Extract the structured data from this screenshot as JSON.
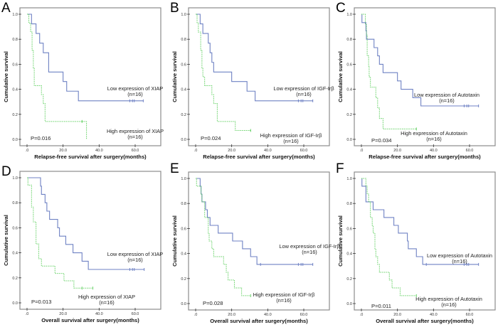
{
  "figure": {
    "description": "Six Kaplan-Meier survival curves comparing low vs high expression of XIAP, IGF-Irβ and Autotaxin"
  },
  "chart_data": [
    {
      "id": "A",
      "type": "line",
      "panel_label": "A",
      "xlabel": "Relapse-free survival after surgery(months)",
      "ylabel": "Cumulative survival",
      "xlim": [
        0,
        70
      ],
      "ylim": [
        0,
        1.0
      ],
      "xticks": [
        ".0",
        "20.0",
        "40.0",
        "60.0"
      ],
      "xtick_values": [
        0,
        20,
        40,
        60
      ],
      "yticks": [
        "0.0",
        "0.2",
        "0.4",
        "0.6",
        "0.8",
        "1.0"
      ],
      "ytick_values": [
        0,
        0.2,
        0.4,
        0.6,
        0.8,
        1.0
      ],
      "p_value": "P=0.016",
      "series": [
        {
          "name": "Low expression of XIAP",
          "n_label": "(n=16)",
          "style": "low",
          "steps": [
            [
              0,
              1.0
            ],
            [
              2.5,
              0.923
            ],
            [
              5,
              0.846
            ],
            [
              7,
              0.769
            ],
            [
              9,
              0.692
            ],
            [
              12,
              0.538
            ],
            [
              20,
              0.462
            ],
            [
              22,
              0.385
            ],
            [
              28.5,
              0.308
            ],
            [
              64.5,
              0.308
            ]
          ],
          "censored": [
            [
              57,
              0.308
            ],
            [
              58.5,
              0.308
            ],
            [
              59.5,
              0.308
            ],
            [
              64.5,
              0.308
            ]
          ]
        },
        {
          "name": "High expression of XIAP",
          "n_label": "(n=16)",
          "style": "high",
          "steps": [
            [
              0,
              1.0
            ],
            [
              1,
              0.929
            ],
            [
              2,
              0.857
            ],
            [
              2.8,
              0.714
            ],
            [
              3.5,
              0.571
            ],
            [
              4,
              0.429
            ],
            [
              8,
              0.357
            ],
            [
              9,
              0.286
            ],
            [
              10,
              0.143
            ],
            [
              33,
              0.0
            ]
          ],
          "censored": [
            [
              30.5,
              0.143
            ]
          ]
        }
      ]
    },
    {
      "id": "B",
      "type": "line",
      "panel_label": "B",
      "xlabel": "Relapse-free survival after surgery(months)",
      "ylabel": "Cumulative survival",
      "xlim": [
        0,
        70
      ],
      "ylim": [
        0,
        1.0
      ],
      "xticks": [
        ".0",
        "20.0",
        "40.0",
        "60.0"
      ],
      "xtick_values": [
        0,
        20,
        40,
        60
      ],
      "yticks": [
        "0.0",
        "0.2",
        "0.4",
        "0.6",
        "0.8",
        "1.0"
      ],
      "ytick_values": [
        0,
        0.2,
        0.4,
        0.6,
        0.8,
        1.0
      ],
      "p_value": "P=0.024",
      "series": [
        {
          "name": "Low expression of  IGF-Irβ",
          "n_label": "(n=16)",
          "style": "low",
          "steps": [
            [
              0,
              1.0
            ],
            [
              2.5,
              0.923
            ],
            [
              4,
              0.846
            ],
            [
              7,
              0.769
            ],
            [
              8,
              0.692
            ],
            [
              9,
              0.615
            ],
            [
              10,
              0.538
            ],
            [
              20,
              0.462
            ],
            [
              28.5,
              0.385
            ],
            [
              33,
              0.308
            ],
            [
              65,
              0.308
            ]
          ],
          "censored": [
            [
              57,
              0.308
            ],
            [
              58.5,
              0.308
            ],
            [
              59.5,
              0.308
            ],
            [
              65,
              0.308
            ]
          ]
        },
        {
          "name": "High expression of IGF-Irβ",
          "n_label": "(n=16)",
          "style": "high",
          "steps": [
            [
              0,
              1.0
            ],
            [
              0.8,
              0.929
            ],
            [
              1.5,
              0.857
            ],
            [
              2.8,
              0.714
            ],
            [
              3.5,
              0.571
            ],
            [
              4,
              0.5
            ],
            [
              5,
              0.429
            ],
            [
              9,
              0.357
            ],
            [
              10,
              0.286
            ],
            [
              12,
              0.143
            ],
            [
              22,
              0.071
            ],
            [
              30.5,
              0.071
            ]
          ],
          "censored": [
            [
              30.5,
              0.071
            ]
          ]
        }
      ]
    },
    {
      "id": "C",
      "type": "line",
      "panel_label": "C",
      "xlabel": "Relapse-free survival after surgery(months)",
      "ylabel": "Cumulative survival",
      "xlim": [
        0,
        70
      ],
      "ylim": [
        0,
        1.0
      ],
      "xticks": [
        ".0",
        "20.0",
        "40.0",
        "60.0"
      ],
      "xtick_values": [
        0,
        20,
        40,
        60
      ],
      "yticks": [
        "0.0",
        "0.2",
        "0.4",
        "0.6",
        "0.8",
        "1.0"
      ],
      "ytick_values": [
        0,
        0.2,
        0.4,
        0.6,
        0.8,
        1.0
      ],
      "p_value": "P=0.034",
      "series": [
        {
          "name": "Low expression of Autotaxin",
          "n_label": "(n=16)",
          "style": "low",
          "steps": [
            [
              0,
              1.0
            ],
            [
              0.3,
              0.933
            ],
            [
              2.5,
              0.867
            ],
            [
              2.8,
              0.8
            ],
            [
              7,
              0.733
            ],
            [
              9,
              0.667
            ],
            [
              10,
              0.6
            ],
            [
              12,
              0.533
            ],
            [
              20,
              0.467
            ],
            [
              22,
              0.4
            ],
            [
              28.5,
              0.333
            ],
            [
              33,
              0.267
            ],
            [
              65,
              0.267
            ]
          ],
          "censored": [
            [
              57,
              0.267
            ],
            [
              58.5,
              0.267
            ],
            [
              59.5,
              0.267
            ],
            [
              65,
              0.267
            ]
          ]
        },
        {
          "name": "High expression of Autotaxin",
          "n_label": "(n=16)",
          "style": "high",
          "steps": [
            [
              0,
              1.0
            ],
            [
              2.2,
              0.917
            ],
            [
              2.8,
              0.833
            ],
            [
              3.2,
              0.667
            ],
            [
              4,
              0.583
            ],
            [
              4.3,
              0.5
            ],
            [
              5,
              0.417
            ],
            [
              8,
              0.333
            ],
            [
              9,
              0.25
            ],
            [
              10,
              0.167
            ],
            [
              12,
              0.083
            ],
            [
              30.5,
              0.083
            ]
          ],
          "censored": [
            [
              30.5,
              0.083
            ]
          ]
        }
      ]
    },
    {
      "id": "D",
      "type": "line",
      "panel_label": "D",
      "xlabel": "Overall survival after surgery(months)",
      "ylabel": "Cumulative survival",
      "xlim": [
        0,
        70
      ],
      "ylim": [
        0,
        1.0
      ],
      "xticks": [
        ".0",
        "20.0",
        "40.0",
        "60.0"
      ],
      "xtick_values": [
        0,
        20,
        40,
        60
      ],
      "yticks": [
        "0.0",
        "0.2",
        "0.4",
        "0.6",
        "0.8",
        "1.0"
      ],
      "ytick_values": [
        0,
        0.2,
        0.4,
        0.6,
        0.8,
        1.0
      ],
      "p_value": "P=0.013",
      "series": [
        {
          "name": "Low expression of XIAP",
          "n_label": "(n=16)",
          "style": "low",
          "steps": [
            [
              0,
              1.0
            ],
            [
              7.5,
              0.933
            ],
            [
              8,
              0.867
            ],
            [
              10,
              0.8
            ],
            [
              11,
              0.733
            ],
            [
              12.5,
              0.667
            ],
            [
              17,
              0.6
            ],
            [
              18,
              0.533
            ],
            [
              21.5,
              0.467
            ],
            [
              25.5,
              0.4
            ],
            [
              30.5,
              0.333
            ],
            [
              34,
              0.267
            ],
            [
              65,
              0.267
            ]
          ],
          "censored": [
            [
              57,
              0.267
            ],
            [
              58.5,
              0.267
            ],
            [
              59.5,
              0.267
            ],
            [
              65,
              0.267
            ]
          ]
        },
        {
          "name": "High expression of XIAP",
          "n_label": "(n=16)",
          "style": "high",
          "steps": [
            [
              0,
              1.0
            ],
            [
              0.5,
              0.941
            ],
            [
              2.5,
              0.765
            ],
            [
              3.5,
              0.647
            ],
            [
              5,
              0.471
            ],
            [
              6.5,
              0.353
            ],
            [
              8,
              0.294
            ],
            [
              15.5,
              0.235
            ],
            [
              20.5,
              0.176
            ],
            [
              26,
              0.118
            ],
            [
              36.5,
              0.118
            ]
          ],
          "censored": [
            [
              30.5,
              0.118
            ],
            [
              36.5,
              0.118
            ]
          ]
        }
      ]
    },
    {
      "id": "E",
      "type": "line",
      "panel_label": "E",
      "xlabel": "Overall survival after surgery(months)",
      "ylabel": "Cumulative survival",
      "xlim": [
        0,
        70
      ],
      "ylim": [
        0,
        1.0
      ],
      "xticks": [
        ".0",
        "20.0",
        "40.0",
        "60.0"
      ],
      "xtick_values": [
        0,
        20,
        40,
        60
      ],
      "yticks": [
        "0.0",
        "0.2",
        "0.4",
        "0.6",
        "0.8",
        "1.0"
      ],
      "ytick_values": [
        0,
        0.2,
        0.4,
        0.6,
        0.8,
        1.0
      ],
      "p_value": "P=0.028",
      "series": [
        {
          "name": "Low expression of  IGF-Irβ",
          "n_label": "(n=16)",
          "style": "low",
          "steps": [
            [
              0,
              1.0
            ],
            [
              2.5,
              0.938
            ],
            [
              3,
              0.875
            ],
            [
              3.5,
              0.813
            ],
            [
              5.5,
              0.75
            ],
            [
              6.5,
              0.688
            ],
            [
              8,
              0.625
            ],
            [
              12.5,
              0.563
            ],
            [
              20.5,
              0.5
            ],
            [
              26,
              0.438
            ],
            [
              30.5,
              0.375
            ],
            [
              34,
              0.313
            ],
            [
              65,
              0.313
            ]
          ],
          "censored": [
            [
              36,
              0.313
            ],
            [
              57,
              0.313
            ],
            [
              58.5,
              0.313
            ],
            [
              59.5,
              0.313
            ],
            [
              65,
              0.313
            ]
          ]
        },
        {
          "name": "High expression of  IGF-Irβ",
          "n_label": "(n=16)",
          "style": "high",
          "steps": [
            [
              0,
              1.0
            ],
            [
              0.5,
              0.938
            ],
            [
              3,
              0.875
            ],
            [
              3.5,
              0.813
            ],
            [
              5,
              0.688
            ],
            [
              7,
              0.563
            ],
            [
              7.5,
              0.5
            ],
            [
              9,
              0.438
            ],
            [
              10,
              0.375
            ],
            [
              15.5,
              0.313
            ],
            [
              17,
              0.25
            ],
            [
              18,
              0.188
            ],
            [
              21.5,
              0.125
            ],
            [
              25.5,
              0.063
            ],
            [
              30.5,
              0.063
            ]
          ],
          "censored": [
            [
              30.5,
              0.063
            ]
          ]
        }
      ]
    },
    {
      "id": "F",
      "type": "line",
      "panel_label": "F",
      "xlabel": "Overall survival after surgery(months)",
      "ylabel": "Cumulative survival",
      "xlim": [
        0,
        70
      ],
      "ylim": [
        0,
        1.0
      ],
      "xticks": [
        ".0",
        "20.0",
        "40.0",
        "60.0"
      ],
      "xtick_values": [
        0,
        20,
        40,
        60
      ],
      "yticks": [
        "0.0",
        "0.2",
        "0.4",
        "0.6",
        "0.8",
        "1.0"
      ],
      "ytick_values": [
        0,
        0.2,
        0.4,
        0.6,
        0.8,
        1.0
      ],
      "p_value": "P=0.011",
      "series": [
        {
          "name": "Low expression of Autotaxin",
          "n_label": "(n=16)",
          "style": "low",
          "steps": [
            [
              0,
              1.0
            ],
            [
              0.3,
              0.938
            ],
            [
              2.5,
              0.813
            ],
            [
              6.5,
              0.75
            ],
            [
              12.5,
              0.688
            ],
            [
              18,
              0.625
            ],
            [
              20.5,
              0.563
            ],
            [
              25.5,
              0.5
            ],
            [
              26,
              0.438
            ],
            [
              30.5,
              0.375
            ],
            [
              34,
              0.313
            ],
            [
              65,
              0.313
            ]
          ],
          "censored": [
            [
              36,
              0.313
            ],
            [
              57,
              0.313
            ],
            [
              58.5,
              0.313
            ],
            [
              59.5,
              0.313
            ],
            [
              65,
              0.313
            ]
          ]
        },
        {
          "name": "High expression of Autotaxin",
          "n_label": "(n=16)",
          "style": "high",
          "steps": [
            [
              0,
              1.0
            ],
            [
              2.5,
              0.938
            ],
            [
              3.2,
              0.875
            ],
            [
              4,
              0.813
            ],
            [
              5,
              0.688
            ],
            [
              6,
              0.625
            ],
            [
              6.5,
              0.563
            ],
            [
              7.5,
              0.438
            ],
            [
              8,
              0.375
            ],
            [
              9,
              0.313
            ],
            [
              10,
              0.25
            ],
            [
              15.5,
              0.188
            ],
            [
              17,
              0.125
            ],
            [
              21.5,
              0.063
            ],
            [
              30.5,
              0.063
            ]
          ],
          "censored": [
            [
              30.5,
              0.063
            ]
          ]
        }
      ]
    }
  ]
}
